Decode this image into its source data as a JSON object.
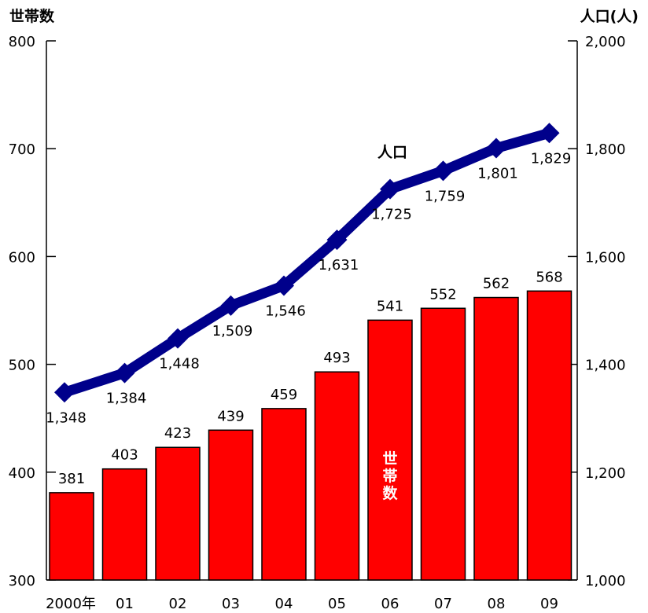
{
  "chart_data": {
    "type": "bar+line",
    "categories": [
      "2000年",
      "01",
      "02",
      "03",
      "04",
      "05",
      "06",
      "07",
      "08",
      "09"
    ],
    "left_axis": {
      "title": "世帯数",
      "ylim": [
        300,
        800
      ],
      "ticks": [
        "300",
        "400",
        "500",
        "600",
        "700",
        "800"
      ],
      "tick_values": [
        300,
        400,
        500,
        600,
        700,
        800
      ]
    },
    "right_axis": {
      "title": "人口(人)",
      "ylim": [
        1000,
        2000
      ],
      "ticks": [
        "1,000",
        "1,200",
        "1,400",
        "1,600",
        "1,800",
        "2,000"
      ],
      "tick_values": [
        1000,
        1200,
        1400,
        1600,
        1800,
        2000
      ]
    },
    "series": [
      {
        "name": "世帯数",
        "type": "bar",
        "axis": "left",
        "color": "#ff0000",
        "values": [
          381,
          403,
          423,
          439,
          459,
          493,
          541,
          552,
          562,
          568
        ],
        "labels": [
          "381",
          "403",
          "423",
          "439",
          "459",
          "493",
          "541",
          "552",
          "562",
          "568"
        ]
      },
      {
        "name": "人口",
        "type": "line",
        "axis": "right",
        "color": "#00008b",
        "values": [
          1348,
          1384,
          1448,
          1509,
          1546,
          1631,
          1725,
          1759,
          1801,
          1829
        ],
        "labels": [
          "1,348",
          "1,384",
          "1,448",
          "1,509",
          "1,546",
          "1,631",
          "1,725",
          "1,759",
          "1,801",
          "1,829"
        ]
      }
    ],
    "series_in_chart_labels": {
      "bar": "世\n帯\n数",
      "line": "人口"
    }
  }
}
